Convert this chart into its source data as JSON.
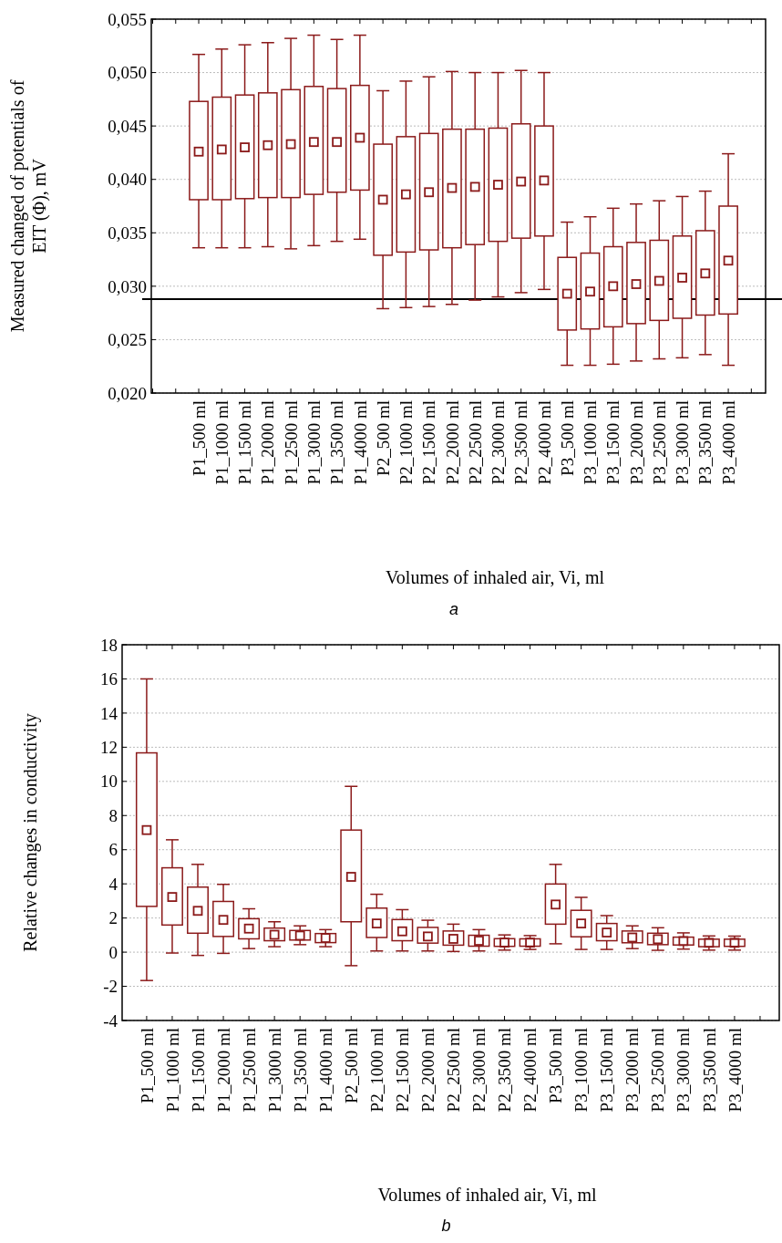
{
  "chart_data": [
    {
      "type": "box",
      "xlabel": "Volumes of inhaled air, Vi, ml",
      "ylabel": "Measured changed of potentials of EIT (Φ), mV",
      "annotations": [
        "a"
      ],
      "categories": [
        "P1_500 ml",
        "P1_1000 ml",
        "P1_1500 ml",
        "P1_2000 ml",
        "P1_2500 ml",
        "P1_3000 ml",
        "P1_3500 ml",
        "P1_4000 ml",
        "P2_500 ml",
        "P2_1000 ml",
        "P2_1500 ml",
        "P2_2000 ml",
        "P2_2500 ml",
        "P2_3000 ml",
        "P2_3500 ml",
        "P2_4000 ml",
        "P3_500 ml",
        "P3_1000 ml",
        "P3_1500 ml",
        "P3_2000 ml",
        "P3_2500 ml",
        "P3_3000 ml",
        "P3_3500 ml",
        "P3_4000 ml"
      ],
      "series": [
        {
          "color": "#8b1a1a",
          "boxes": [
            {
              "low": 0.0336,
              "q1": 0.0381,
              "median": 0.0426,
              "q3": 0.0473,
              "high": 0.0517
            },
            {
              "low": 0.0336,
              "q1": 0.0381,
              "median": 0.0428,
              "q3": 0.0477,
              "high": 0.0522
            },
            {
              "low": 0.0336,
              "q1": 0.0382,
              "median": 0.043,
              "q3": 0.0479,
              "high": 0.0526
            },
            {
              "low": 0.0337,
              "q1": 0.0383,
              "median": 0.0432,
              "q3": 0.0481,
              "high": 0.0528
            },
            {
              "low": 0.0335,
              "q1": 0.0383,
              "median": 0.0433,
              "q3": 0.0484,
              "high": 0.0532
            },
            {
              "low": 0.0338,
              "q1": 0.0386,
              "median": 0.0435,
              "q3": 0.0487,
              "high": 0.0535
            },
            {
              "low": 0.0342,
              "q1": 0.0388,
              "median": 0.0435,
              "q3": 0.0485,
              "high": 0.0531
            },
            {
              "low": 0.0344,
              "q1": 0.039,
              "median": 0.0439,
              "q3": 0.0488,
              "high": 0.0535
            },
            {
              "low": 0.0279,
              "q1": 0.0329,
              "median": 0.0381,
              "q3": 0.0433,
              "high": 0.0483
            },
            {
              "low": 0.028,
              "q1": 0.0332,
              "median": 0.0386,
              "q3": 0.044,
              "high": 0.0492
            },
            {
              "low": 0.0281,
              "q1": 0.0334,
              "median": 0.0388,
              "q3": 0.0443,
              "high": 0.0496
            },
            {
              "low": 0.0283,
              "q1": 0.0336,
              "median": 0.0392,
              "q3": 0.0447,
              "high": 0.0501
            },
            {
              "low": 0.0287,
              "q1": 0.0339,
              "median": 0.0393,
              "q3": 0.0447,
              "high": 0.05
            },
            {
              "low": 0.029,
              "q1": 0.0342,
              "median": 0.0395,
              "q3": 0.0448,
              "high": 0.05
            },
            {
              "low": 0.0294,
              "q1": 0.0345,
              "median": 0.0398,
              "q3": 0.0452,
              "high": 0.0502
            },
            {
              "low": 0.0297,
              "q1": 0.0347,
              "median": 0.0399,
              "q3": 0.045,
              "high": 0.05
            },
            {
              "low": 0.0226,
              "q1": 0.0259,
              "median": 0.0293,
              "q3": 0.0327,
              "high": 0.036
            },
            {
              "low": 0.0226,
              "q1": 0.026,
              "median": 0.0295,
              "q3": 0.0331,
              "high": 0.0365
            },
            {
              "low": 0.0227,
              "q1": 0.0262,
              "median": 0.03,
              "q3": 0.0337,
              "high": 0.0373
            },
            {
              "low": 0.023,
              "q1": 0.0265,
              "median": 0.0302,
              "q3": 0.0341,
              "high": 0.0377
            },
            {
              "low": 0.0232,
              "q1": 0.0268,
              "median": 0.0305,
              "q3": 0.0343,
              "high": 0.038
            },
            {
              "low": 0.0233,
              "q1": 0.027,
              "median": 0.0308,
              "q3": 0.0347,
              "high": 0.0384
            },
            {
              "low": 0.0236,
              "q1": 0.0273,
              "median": 0.0312,
              "q3": 0.0352,
              "high": 0.0389
            },
            {
              "low": 0.0226,
              "q1": 0.0274,
              "median": 0.0324,
              "q3": 0.0375,
              "high": 0.0424
            }
          ]
        }
      ],
      "ylim": [
        0.02,
        0.055
      ],
      "yticks": [
        {
          "value": 0.02,
          "label": "0,020"
        },
        {
          "value": 0.025,
          "label": "0,025"
        },
        {
          "value": 0.03,
          "label": "0,030"
        },
        {
          "value": 0.035,
          "label": "0,035"
        },
        {
          "value": 0.04,
          "label": "0,040"
        },
        {
          "value": 0.045,
          "label": "0,045"
        },
        {
          "value": 0.05,
          "label": "0,050"
        },
        {
          "value": 0.055,
          "label": "0,055"
        }
      ],
      "ref_lines": [
        {
          "axis": "y",
          "value": 0.0288,
          "color": "#000000"
        }
      ],
      "grid": "y",
      "marker": "square"
    },
    {
      "type": "box",
      "xlabel": "Volumes of inhaled air, Vi, ml",
      "ylabel": "Relative changes in conductivity",
      "annotations": [
        "b"
      ],
      "categories": [
        "P1_500 ml",
        "P1_1000 ml",
        "P1_1500 ml",
        "P1_2000 ml",
        "P1_2500 ml",
        "P1_3000 ml",
        "P1_3500 ml",
        "P1_4000 ml",
        "P2_500 ml",
        "P2_1000 ml",
        "P2_1500 ml",
        "P2_2000 ml",
        "P2_2500 ml",
        "P2_3000 ml",
        "P2_3500 ml",
        "P2_4000 ml",
        "P3_500 ml",
        "P3_1000 ml",
        "P3_1500 ml",
        "P3_2000 ml",
        "P3_2500 ml",
        "P3_3000 ml",
        "P3_3500 ml",
        "P3_4000 ml"
      ],
      "series": [
        {
          "color": "#8b1a1a",
          "boxes": [
            {
              "low": -1.66,
              "q1": 2.68,
              "median": 7.15,
              "q3": 11.67,
              "high": 16.0
            },
            {
              "low": -0.05,
              "q1": 1.59,
              "median": 3.23,
              "q3": 4.94,
              "high": 6.58
            },
            {
              "low": -0.19,
              "q1": 1.11,
              "median": 2.42,
              "q3": 3.81,
              "high": 5.14
            },
            {
              "low": -0.07,
              "q1": 0.92,
              "median": 1.89,
              "q3": 2.97,
              "high": 3.97
            },
            {
              "low": 0.21,
              "q1": 0.78,
              "median": 1.38,
              "q3": 1.96,
              "high": 2.54
            },
            {
              "low": 0.32,
              "q1": 0.67,
              "median": 1.02,
              "q3": 1.41,
              "high": 1.78
            },
            {
              "low": 0.44,
              "q1": 0.71,
              "median": 0.97,
              "q3": 1.27,
              "high": 1.54
            },
            {
              "low": 0.32,
              "q1": 0.56,
              "median": 0.83,
              "q3": 1.09,
              "high": 1.32
            },
            {
              "low": -0.79,
              "q1": 1.78,
              "median": 4.41,
              "q3": 7.15,
              "high": 9.71
            },
            {
              "low": 0.07,
              "q1": 0.86,
              "median": 1.68,
              "q3": 2.58,
              "high": 3.39
            },
            {
              "low": 0.07,
              "q1": 0.67,
              "median": 1.22,
              "q3": 1.91,
              "high": 2.49
            },
            {
              "low": 0.07,
              "q1": 0.53,
              "median": 0.92,
              "q3": 1.45,
              "high": 1.87
            },
            {
              "low": 0.04,
              "q1": 0.41,
              "median": 0.78,
              "q3": 1.24,
              "high": 1.64
            },
            {
              "low": 0.07,
              "q1": 0.35,
              "median": 0.67,
              "q3": 0.99,
              "high": 1.32
            },
            {
              "low": 0.12,
              "q1": 0.34,
              "median": 0.56,
              "q3": 0.79,
              "high": 1.01
            },
            {
              "low": 0.16,
              "q1": 0.35,
              "median": 0.56,
              "q3": 0.78,
              "high": 0.97
            },
            {
              "low": 0.49,
              "q1": 1.64,
              "median": 2.79,
              "q3": 3.99,
              "high": 5.14
            },
            {
              "low": 0.16,
              "q1": 0.9,
              "median": 1.68,
              "q3": 2.45,
              "high": 3.21
            },
            {
              "low": 0.16,
              "q1": 0.67,
              "median": 1.15,
              "q3": 1.68,
              "high": 2.14
            },
            {
              "low": 0.21,
              "q1": 0.55,
              "median": 0.86,
              "q3": 1.24,
              "high": 1.54
            },
            {
              "low": 0.11,
              "q1": 0.44,
              "median": 0.76,
              "q3": 1.11,
              "high": 1.43
            },
            {
              "low": 0.18,
              "q1": 0.42,
              "median": 0.65,
              "q3": 0.88,
              "high": 1.13
            },
            {
              "low": 0.12,
              "q1": 0.32,
              "median": 0.55,
              "q3": 0.76,
              "high": 0.95
            },
            {
              "low": 0.12,
              "q1": 0.34,
              "median": 0.55,
              "q3": 0.76,
              "high": 0.94
            }
          ]
        }
      ],
      "ylim": [
        -4,
        18
      ],
      "yticks": [
        -4,
        -2,
        0,
        2,
        4,
        6,
        8,
        10,
        12,
        14,
        16,
        18
      ],
      "grid": "y",
      "marker": "square"
    }
  ]
}
